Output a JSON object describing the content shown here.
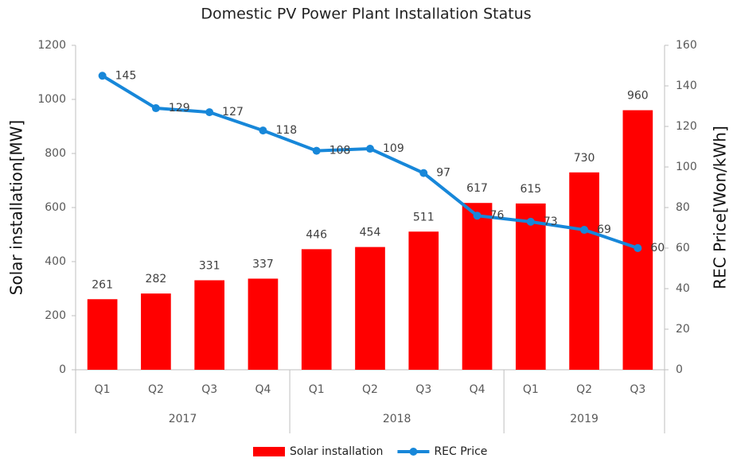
{
  "chart_data": {
    "type": "bar_line",
    "title": "Domestic PV Power Plant Installation Status",
    "categories": [
      "Q1",
      "Q2",
      "Q3",
      "Q4",
      "Q1",
      "Q2",
      "Q3",
      "Q4",
      "Q1",
      "Q2",
      "Q3"
    ],
    "groups": [
      "2017",
      "2017",
      "2017",
      "2017",
      "2018",
      "2018",
      "2018",
      "2018",
      "2019",
      "2019",
      "2019"
    ],
    "y_label": "Solar installation[MW]",
    "y2_label": "REC Price[Won/kWh]",
    "series": [
      {
        "name": "Solar installation",
        "type": "bar",
        "color": "#ff0000",
        "values": [
          261,
          282,
          331,
          337,
          446,
          454,
          511,
          617,
          615,
          730,
          960
        ]
      },
      {
        "name": "REC Price",
        "type": "line",
        "axis": "y2",
        "color": "#1787d9",
        "values": [
          145,
          129,
          127,
          118,
          108,
          109,
          97,
          76,
          73,
          69,
          60
        ]
      }
    ],
    "ylim": [
      0,
      1200
    ],
    "yticks": [
      0,
      200,
      400,
      600,
      800,
      1000,
      1200
    ],
    "y2lim": [
      0,
      160
    ],
    "y2ticks": [
      0,
      20,
      40,
      60,
      80,
      100,
      120,
      140,
      160
    ],
    "legend": "bottom"
  }
}
